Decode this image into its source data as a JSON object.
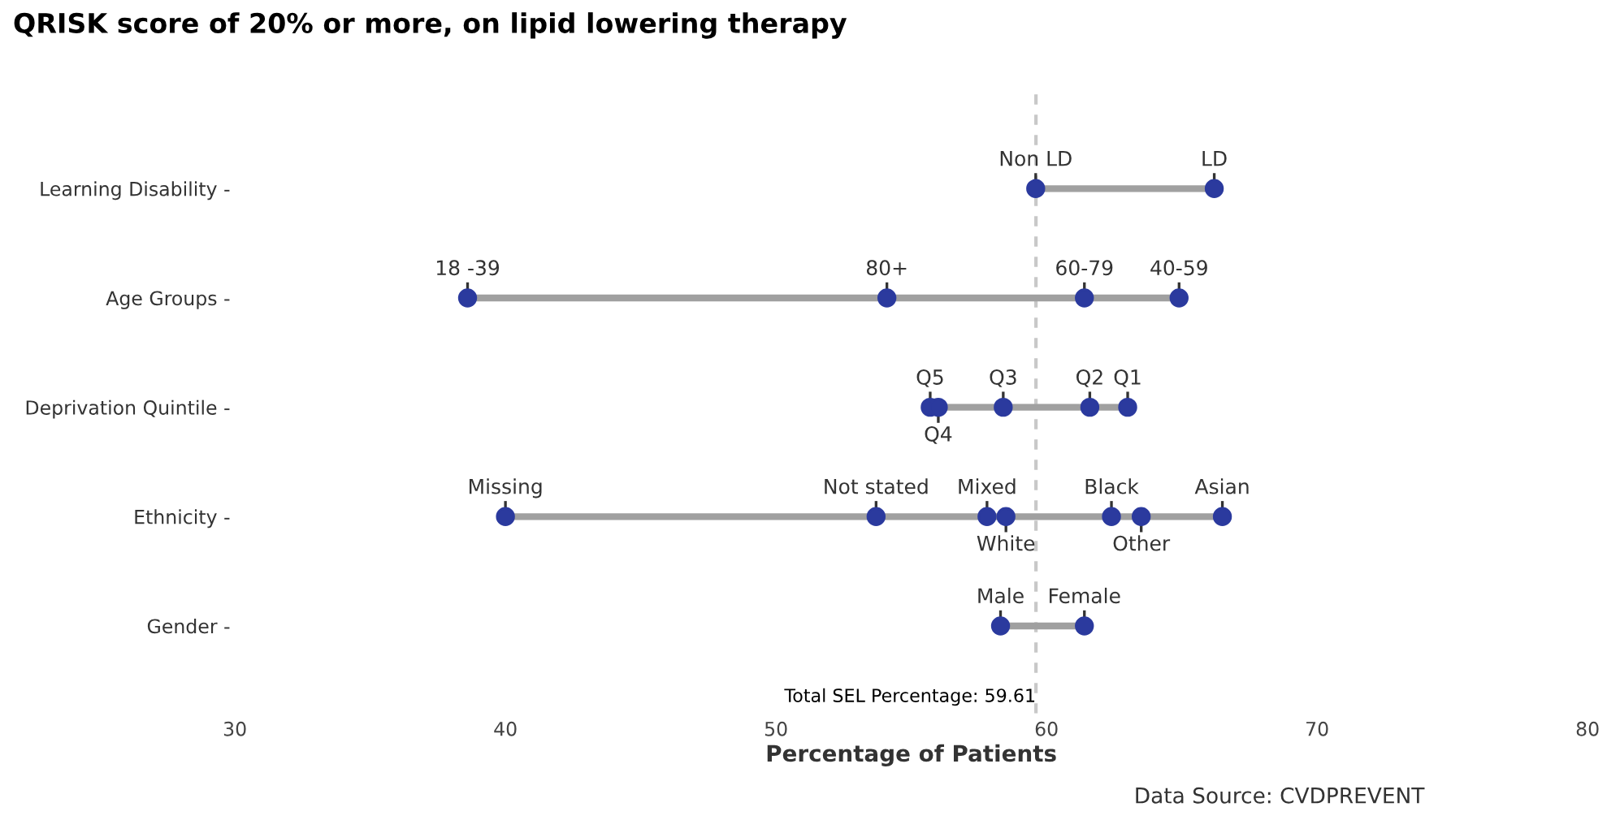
{
  "chart_data": {
    "type": "scatter",
    "orientation": "horizontal",
    "title": "QRISK score of 20% or more, on lipid lowering therapy",
    "xlabel": "Percentage of Patients",
    "categories": [
      "Learning Disability -",
      "Age Groups -",
      "Deprivation Quintile -",
      "Ethnicity -",
      "Gender -"
    ],
    "xlim": [
      30,
      80
    ],
    "xticks": [
      30,
      40,
      50,
      60,
      70,
      80
    ],
    "series": [
      {
        "name": "Non LD",
        "color": "#2b3a9e",
        "values": [
          59.6,
          null,
          null,
          null,
          null
        ]
      },
      {
        "name": "LD",
        "color": "#2b3a9e",
        "values": [
          66.2,
          null,
          null,
          null,
          null
        ]
      },
      {
        "name": "18 -39",
        "color": "#2b3a9e",
        "values": [
          null,
          38.6,
          null,
          null,
          null
        ]
      },
      {
        "name": "80+",
        "color": "#2b3a9e",
        "values": [
          null,
          54.1,
          null,
          null,
          null
        ]
      },
      {
        "name": "60-79",
        "color": "#2b3a9e",
        "values": [
          null,
          61.4,
          null,
          null,
          null
        ]
      },
      {
        "name": "40-59",
        "color": "#2b3a9e",
        "values": [
          null,
          64.9,
          null,
          null,
          null
        ]
      },
      {
        "name": "Q5",
        "color": "#2b3a9e",
        "values": [
          null,
          null,
          55.7,
          null,
          null
        ]
      },
      {
        "name": "Q4",
        "color": "#2b3a9e",
        "values": [
          null,
          null,
          56.0,
          null,
          null
        ]
      },
      {
        "name": "Q3",
        "color": "#2b3a9e",
        "values": [
          null,
          null,
          58.4,
          null,
          null
        ]
      },
      {
        "name": "Q2",
        "color": "#2b3a9e",
        "values": [
          null,
          null,
          61.6,
          null,
          null
        ]
      },
      {
        "name": "Q1",
        "color": "#2b3a9e",
        "values": [
          null,
          null,
          63.0,
          null,
          null
        ]
      },
      {
        "name": "Missing",
        "color": "#2b3a9e",
        "values": [
          null,
          null,
          null,
          40.0,
          null
        ]
      },
      {
        "name": "Not stated",
        "color": "#2b3a9e",
        "values": [
          null,
          null,
          null,
          53.7,
          null
        ]
      },
      {
        "name": "Mixed",
        "color": "#2b3a9e",
        "values": [
          null,
          null,
          null,
          57.8,
          null
        ]
      },
      {
        "name": "White",
        "color": "#2b3a9e",
        "values": [
          null,
          null,
          null,
          58.5,
          null
        ]
      },
      {
        "name": "Black",
        "color": "#2b3a9e",
        "values": [
          null,
          null,
          null,
          62.4,
          null
        ]
      },
      {
        "name": "Other",
        "color": "#2b3a9e",
        "values": [
          null,
          null,
          null,
          63.5,
          null
        ]
      },
      {
        "name": "Asian",
        "color": "#2b3a9e",
        "values": [
          null,
          null,
          null,
          66.5,
          null
        ]
      },
      {
        "name": "Male",
        "color": "#2b3a9e",
        "values": [
          null,
          null,
          null,
          null,
          58.3
        ]
      },
      {
        "name": "Female",
        "color": "#2b3a9e",
        "values": [
          null,
          null,
          null,
          null,
          61.4
        ]
      }
    ],
    "ref_lines": [
      {
        "axis": "x",
        "value": 59.61,
        "label": "Total SEL Percentage: 59.61",
        "color": "#c8c8c8",
        "line_style": "dashed"
      }
    ],
    "annotations": [
      "Data Source: CVDPREVENT"
    ],
    "marker": "circle",
    "grid": false,
    "legend": false
  }
}
